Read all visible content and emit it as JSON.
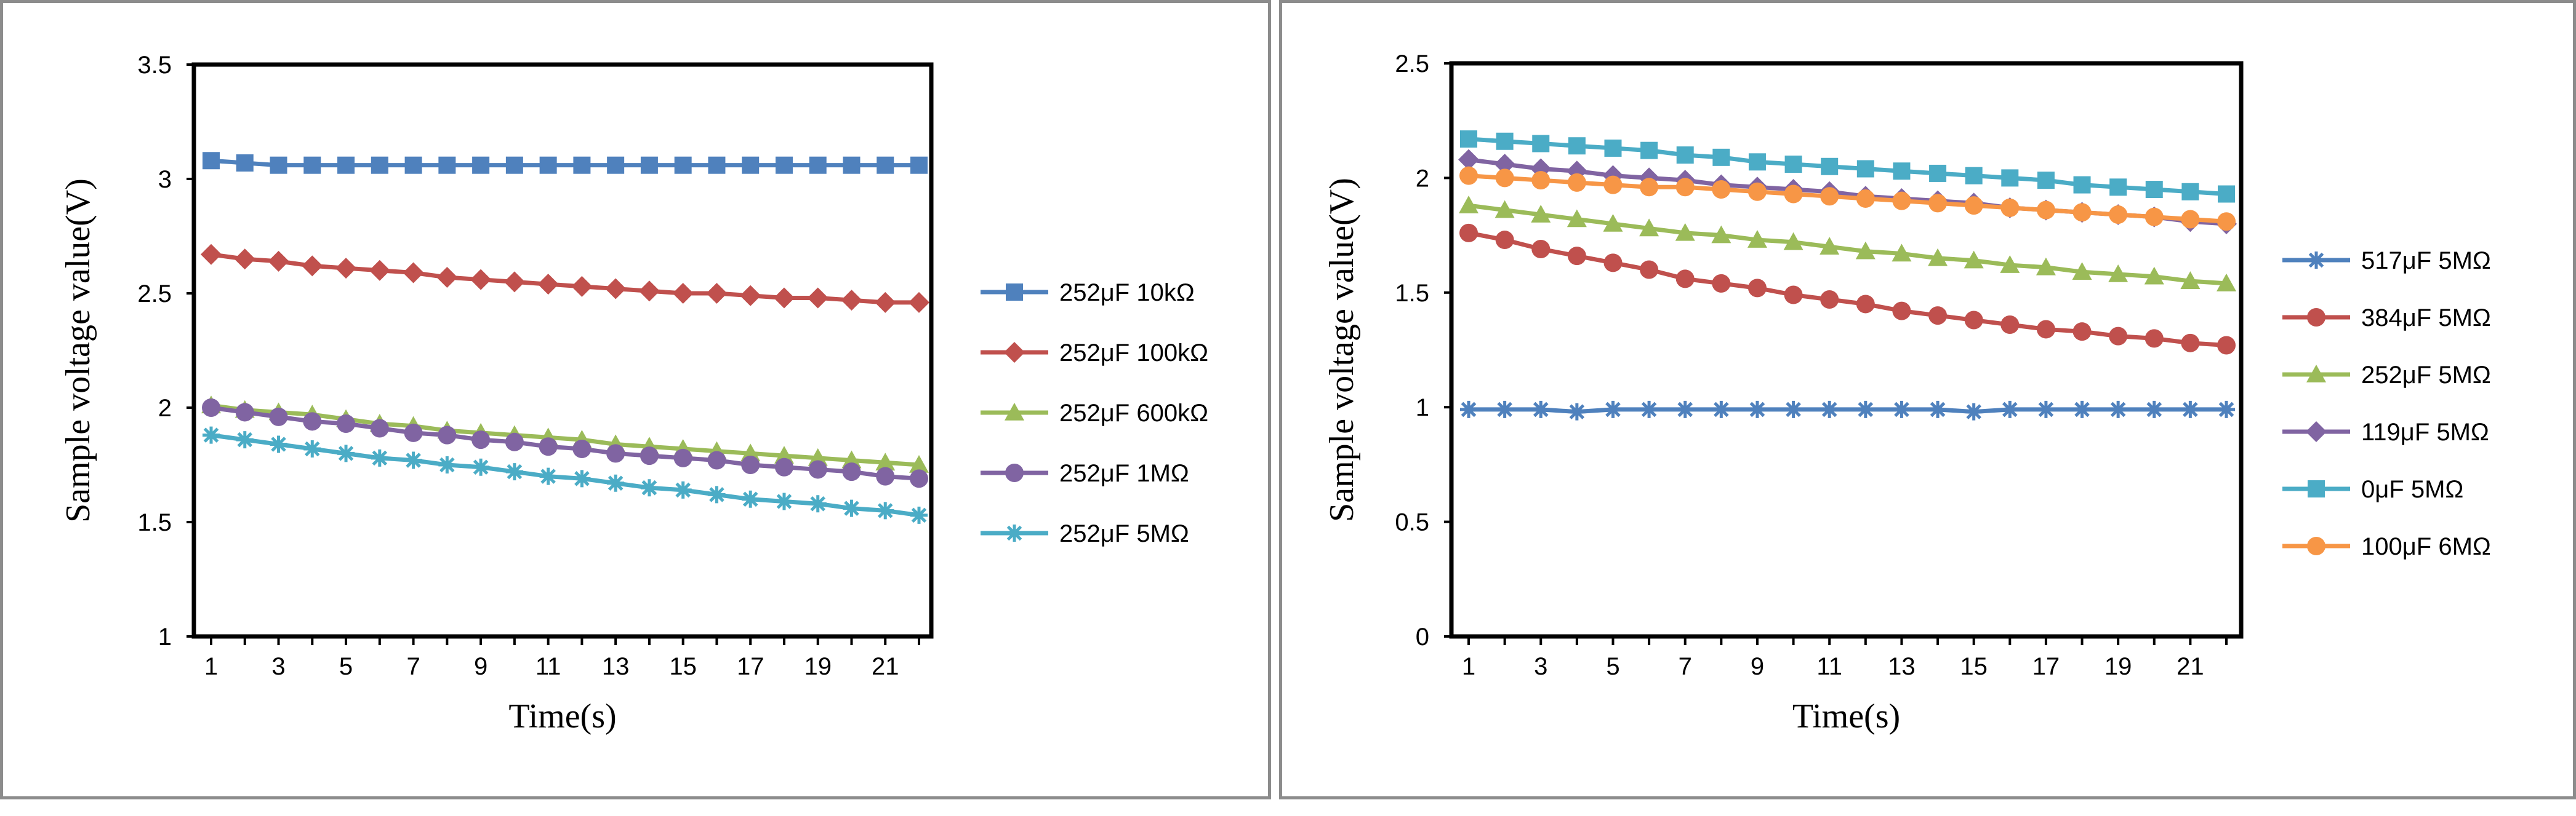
{
  "chart_data": [
    {
      "type": "line",
      "xlabel": "Time(s)",
      "ylabel": "Sample voltage value(V)",
      "xlim": [
        1,
        22
      ],
      "ylim": [
        1,
        3.5
      ],
      "xticks": [
        1,
        3,
        5,
        7,
        9,
        11,
        13,
        15,
        17,
        19,
        21
      ],
      "yticks": [
        1,
        1.5,
        2,
        2.5,
        3,
        3.5
      ],
      "ytick_labels": [
        "1",
        "1.5",
        "2",
        "2.5",
        "3",
        "3.5"
      ],
      "grid": false,
      "legend_position": "right",
      "x": [
        1,
        2,
        3,
        4,
        5,
        6,
        7,
        8,
        9,
        10,
        11,
        12,
        13,
        14,
        15,
        16,
        17,
        18,
        19,
        20,
        21,
        22
      ],
      "series": [
        {
          "name": "252μF 10kΩ",
          "color": "#4F81BD",
          "marker": "square",
          "values": [
            3.08,
            3.07,
            3.06,
            3.06,
            3.06,
            3.06,
            3.06,
            3.06,
            3.06,
            3.06,
            3.06,
            3.06,
            3.06,
            3.06,
            3.06,
            3.06,
            3.06,
            3.06,
            3.06,
            3.06,
            3.06,
            3.06
          ]
        },
        {
          "name": "252μF 100kΩ",
          "color": "#C0504D",
          "marker": "diamond",
          "values": [
            2.67,
            2.65,
            2.64,
            2.62,
            2.61,
            2.6,
            2.59,
            2.57,
            2.56,
            2.55,
            2.54,
            2.53,
            2.52,
            2.51,
            2.5,
            2.5,
            2.49,
            2.48,
            2.48,
            2.47,
            2.46,
            2.46
          ]
        },
        {
          "name": "252μF 600kΩ",
          "color": "#9BBB59",
          "marker": "triangle",
          "values": [
            2.01,
            1.99,
            1.98,
            1.97,
            1.95,
            1.93,
            1.92,
            1.9,
            1.89,
            1.88,
            1.87,
            1.86,
            1.84,
            1.83,
            1.82,
            1.81,
            1.8,
            1.79,
            1.78,
            1.77,
            1.76,
            1.75
          ]
        },
        {
          "name": "252μF 1MΩ",
          "color": "#8064A2",
          "marker": "circle",
          "values": [
            2.0,
            1.98,
            1.96,
            1.94,
            1.93,
            1.91,
            1.89,
            1.88,
            1.86,
            1.85,
            1.83,
            1.82,
            1.8,
            1.79,
            1.78,
            1.77,
            1.75,
            1.74,
            1.73,
            1.72,
            1.7,
            1.69
          ]
        },
        {
          "name": "252μF 5MΩ",
          "color": "#4BACC6",
          "marker": "star",
          "values": [
            1.88,
            1.86,
            1.84,
            1.82,
            1.8,
            1.78,
            1.77,
            1.75,
            1.74,
            1.72,
            1.7,
            1.69,
            1.67,
            1.65,
            1.64,
            1.62,
            1.6,
            1.59,
            1.58,
            1.56,
            1.55,
            1.53
          ]
        }
      ]
    },
    {
      "type": "line",
      "xlabel": "Time(s)",
      "ylabel": "Sample voltage value(V)",
      "xlim": [
        1,
        22
      ],
      "ylim": [
        0,
        2.5
      ],
      "xticks": [
        1,
        3,
        5,
        7,
        9,
        11,
        13,
        15,
        17,
        19,
        21
      ],
      "yticks": [
        0,
        0.5,
        1,
        1.5,
        2,
        2.5
      ],
      "ytick_labels": [
        "0",
        "0.5",
        "1",
        "1.5",
        "2",
        "2.5"
      ],
      "grid": false,
      "legend_position": "right",
      "x": [
        1,
        2,
        3,
        4,
        5,
        6,
        7,
        8,
        9,
        10,
        11,
        12,
        13,
        14,
        15,
        16,
        17,
        18,
        19,
        20,
        21,
        22
      ],
      "series": [
        {
          "name": "517μF 5MΩ",
          "color": "#4F81BD",
          "marker": "star",
          "values": [
            0.99,
            0.99,
            0.99,
            0.98,
            0.99,
            0.99,
            0.99,
            0.99,
            0.99,
            0.99,
            0.99,
            0.99,
            0.99,
            0.99,
            0.98,
            0.99,
            0.99,
            0.99,
            0.99,
            0.99,
            0.99,
            0.99
          ]
        },
        {
          "name": "384μF 5MΩ",
          "color": "#C0504D",
          "marker": "circle",
          "values": [
            1.76,
            1.73,
            1.69,
            1.66,
            1.63,
            1.6,
            1.56,
            1.54,
            1.52,
            1.49,
            1.47,
            1.45,
            1.42,
            1.4,
            1.38,
            1.36,
            1.34,
            1.33,
            1.31,
            1.3,
            1.28,
            1.27
          ]
        },
        {
          "name": "252μF 5MΩ",
          "color": "#9BBB59",
          "marker": "triangle",
          "values": [
            1.88,
            1.86,
            1.84,
            1.82,
            1.8,
            1.78,
            1.76,
            1.75,
            1.73,
            1.72,
            1.7,
            1.68,
            1.67,
            1.65,
            1.64,
            1.62,
            1.61,
            1.59,
            1.58,
            1.57,
            1.55,
            1.54
          ]
        },
        {
          "name": "119μF 5MΩ",
          "color": "#8064A2",
          "marker": "diamond",
          "values": [
            2.08,
            2.06,
            2.04,
            2.03,
            2.01,
            2.0,
            1.99,
            1.97,
            1.96,
            1.95,
            1.94,
            1.92,
            1.91,
            1.9,
            1.89,
            1.87,
            1.86,
            1.85,
            1.84,
            1.83,
            1.81,
            1.8
          ]
        },
        {
          "name": "0μF 5MΩ",
          "color": "#4BACC6",
          "marker": "square",
          "values": [
            2.17,
            2.16,
            2.15,
            2.14,
            2.13,
            2.12,
            2.1,
            2.09,
            2.07,
            2.06,
            2.05,
            2.04,
            2.03,
            2.02,
            2.01,
            2.0,
            1.99,
            1.97,
            1.96,
            1.95,
            1.94,
            1.93
          ]
        },
        {
          "name": "100μF 6MΩ",
          "color": "#F79646",
          "marker": "circle",
          "values": [
            2.01,
            2.0,
            1.99,
            1.98,
            1.97,
            1.96,
            1.96,
            1.95,
            1.94,
            1.93,
            1.92,
            1.91,
            1.9,
            1.89,
            1.88,
            1.87,
            1.86,
            1.85,
            1.84,
            1.83,
            1.82,
            1.81
          ]
        }
      ]
    }
  ]
}
